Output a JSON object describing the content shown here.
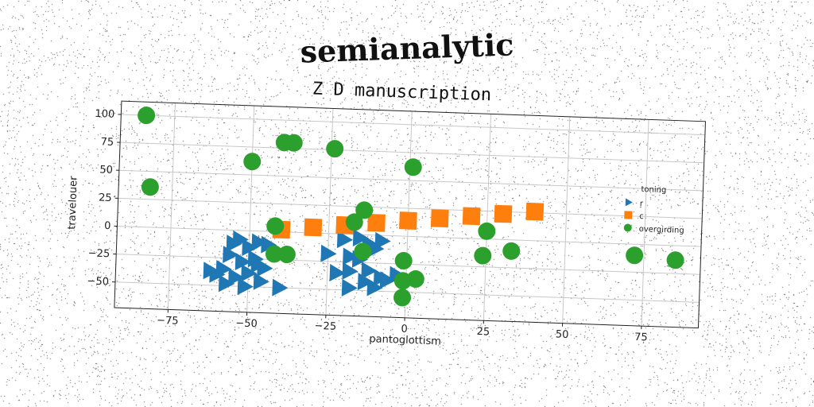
{
  "page": {
    "title": "semianalytic"
  },
  "chart_data": {
    "type": "scatter",
    "title": "Z D manuscription",
    "xlabel": "pantoglottism",
    "ylabel": "travelouer",
    "xlim": [
      -92,
      93
    ],
    "ylim": [
      -73,
      112
    ],
    "xticks": [
      -75,
      -50,
      -25,
      0,
      25,
      50,
      75
    ],
    "yticks": [
      -50,
      -25,
      0,
      25,
      50,
      75,
      100
    ],
    "grid": true,
    "legend": {
      "title": "toning",
      "placement": "right"
    },
    "series": [
      {
        "name": "r",
        "marker": "triangle-right",
        "color": "#1f77b4",
        "points": [
          [
            -55,
            -12
          ],
          [
            -53,
            -8
          ],
          [
            -50,
            -15
          ],
          [
            -47,
            -10
          ],
          [
            -44,
            -12
          ],
          [
            -56,
            -22
          ],
          [
            -52,
            -28
          ],
          [
            -48,
            -25
          ],
          [
            -45,
            -33
          ],
          [
            -58,
            -35
          ],
          [
            -54,
            -42
          ],
          [
            -50,
            -38
          ],
          [
            -46,
            -45
          ],
          [
            -60,
            -40
          ],
          [
            -57,
            -48
          ],
          [
            -62,
            -37
          ],
          [
            -51,
            -50
          ],
          [
            -40,
            -50
          ],
          [
            -25,
            -18
          ],
          [
            -18,
            -20
          ],
          [
            -15,
            -22
          ],
          [
            -10,
            -12
          ],
          [
            -12,
            -8
          ],
          [
            -8,
            -5
          ],
          [
            -20,
            -5
          ],
          [
            -15,
            -3
          ],
          [
            -12,
            -32
          ],
          [
            -18,
            -33
          ],
          [
            -22,
            -35
          ],
          [
            -8,
            -38
          ],
          [
            -13,
            -42
          ],
          [
            -18,
            -48
          ],
          [
            -10,
            -47
          ],
          [
            -6,
            -40
          ],
          [
            -3,
            -35
          ],
          [
            -47,
            -30
          ]
        ]
      },
      {
        "name": "c",
        "marker": "square",
        "color": "#ff7f0e",
        "points": [
          [
            -40,
            2
          ],
          [
            -30,
            5
          ],
          [
            -20,
            8
          ],
          [
            -10,
            11
          ],
          [
            0,
            14
          ],
          [
            10,
            17
          ],
          [
            20,
            20
          ],
          [
            30,
            23
          ],
          [
            40,
            26
          ]
        ]
      },
      {
        "name": "overgirding",
        "marker": "circle",
        "color": "#2ca02c",
        "points": [
          [
            -84,
            100
          ],
          [
            -82,
            36
          ],
          [
            -40,
            80
          ],
          [
            -37,
            80
          ],
          [
            -24,
            76
          ],
          [
            -50,
            62
          ],
          [
            1,
            62
          ],
          [
            -14,
            22
          ],
          [
            -17,
            11
          ],
          [
            -42,
            5
          ],
          [
            -42,
            -20
          ],
          [
            -38,
            -20
          ],
          [
            -14,
            -15
          ],
          [
            -1,
            -22
          ],
          [
            -1,
            -40
          ],
          [
            -1,
            -55
          ],
          [
            3,
            -38
          ],
          [
            25,
            7
          ],
          [
            24,
            -15
          ],
          [
            33,
            -10
          ],
          [
            72,
            -10
          ],
          [
            85,
            -13
          ]
        ]
      }
    ]
  }
}
